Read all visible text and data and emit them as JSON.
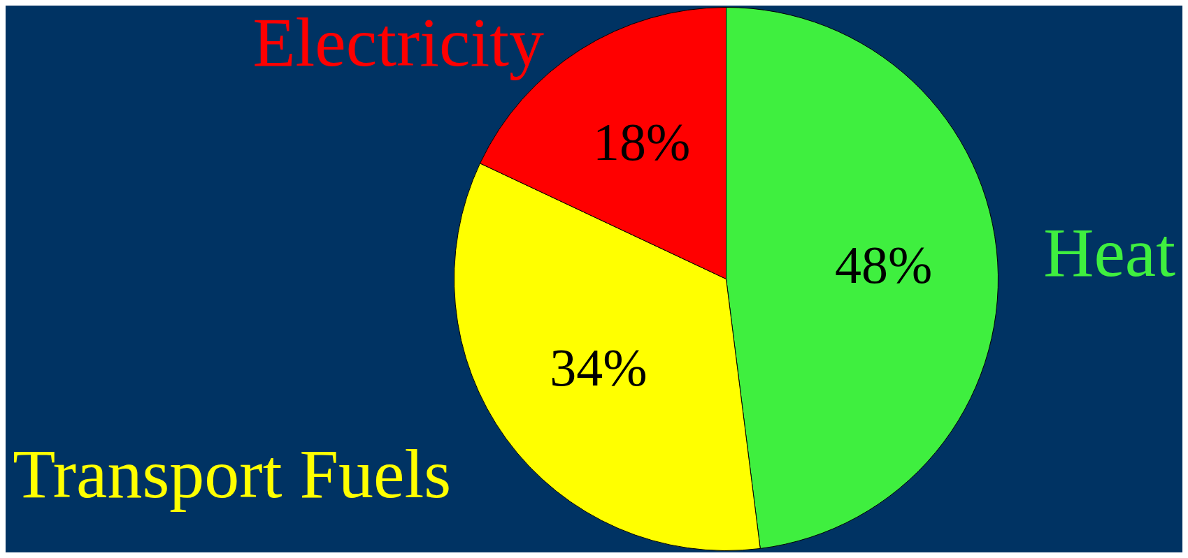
{
  "chart_data": {
    "type": "pie",
    "categories": [
      "Heat",
      "Transport Fuels",
      "Electricity"
    ],
    "values": [
      48,
      34,
      18
    ],
    "colors": [
      "#3fef3f",
      "#ffff00",
      "#ff0000"
    ],
    "value_labels": [
      "48%",
      "34%",
      "18%"
    ],
    "legend": false
  }
}
